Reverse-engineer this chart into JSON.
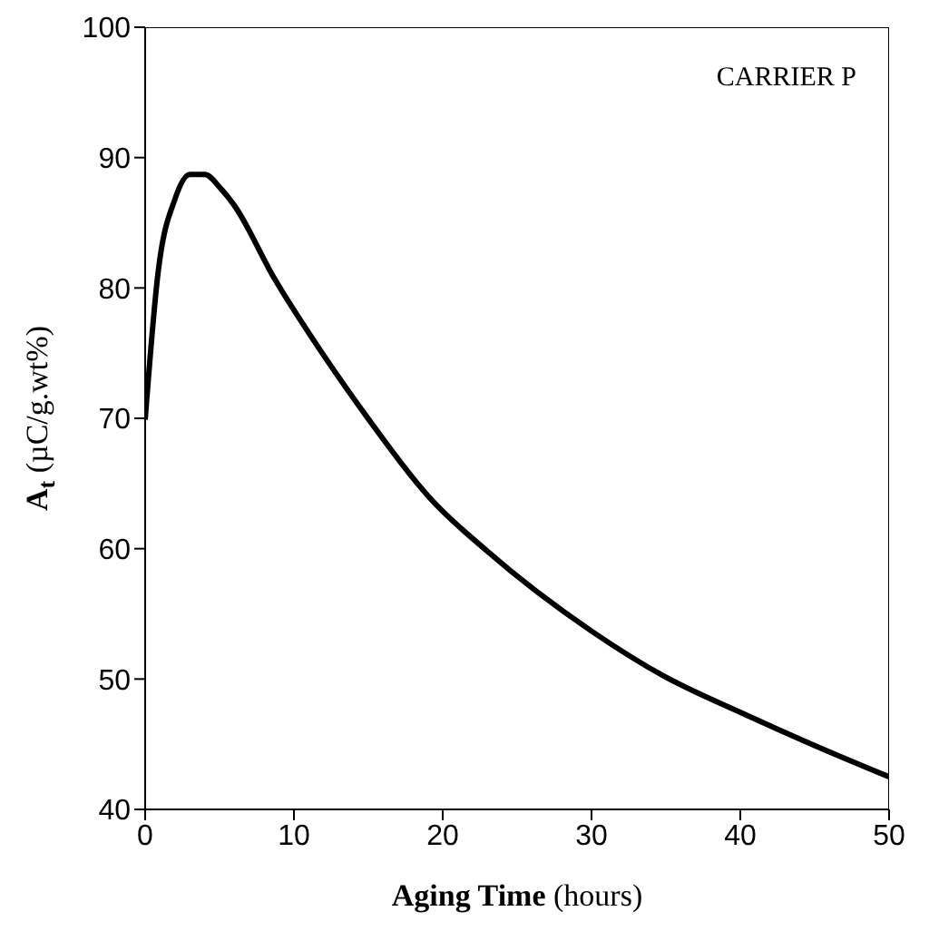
{
  "chart_data": {
    "type": "line",
    "xlabel": "Aging Time  (hours)",
    "ylabel": "A$_{t}$  (µC/g.wt%)",
    "annotations": [
      "CARRIER P"
    ],
    "x": [
      0,
      0.87,
      2,
      3,
      4,
      5.1,
      5.95,
      8.7,
      11.9,
      15.1,
      18.3,
      19.05,
      23,
      30.1,
      34.9,
      40.1,
      44.8,
      50
    ],
    "series": [
      {
        "color": "#000000",
        "values": [
          69.9,
          81.2,
          86.8,
          88.7,
          88.7,
          87.6,
          86.4,
          80.7,
          75,
          69.8,
          65,
          64,
          59.8,
          53.6,
          50.2,
          47.4,
          45,
          42.5
        ]
      }
    ],
    "xlim": [
      0,
      50
    ],
    "xticks": [
      0,
      10,
      20,
      30,
      40,
      50
    ],
    "ylim": [
      40,
      100
    ],
    "yticks": [
      40,
      50,
      60,
      70,
      80,
      90,
      100
    ],
    "grid": false,
    "marker": "none",
    "line_style": "solid"
  }
}
